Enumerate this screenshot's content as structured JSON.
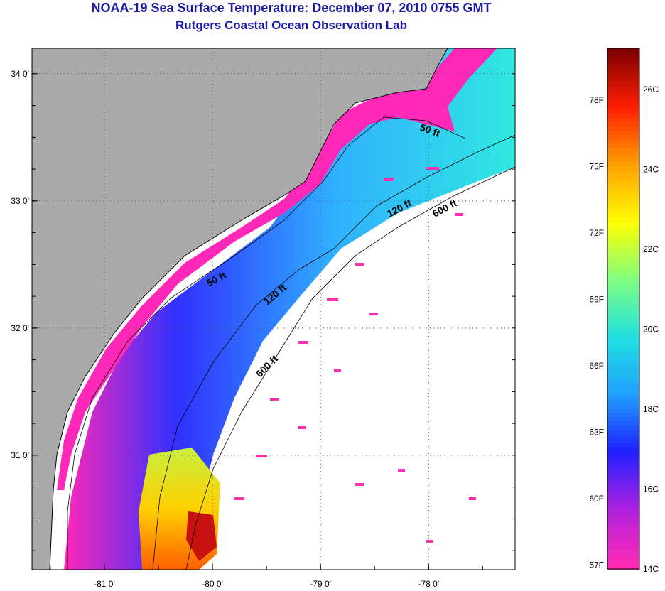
{
  "header": {
    "title": "NOAA-19 Sea Surface Temperature:  December 07, 2010 0755 GMT",
    "subtitle": "Rutgers Coastal Ocean Observation Lab"
  },
  "map": {
    "lon_range": [
      -81.67,
      -77.2
    ],
    "lat_range": [
      30.1,
      34.2
    ],
    "x_tick_labels": [
      "-81 0'",
      "-80 0'",
      "-79 0'",
      "-78 0'"
    ],
    "x_tick_values": [
      -81,
      -80,
      -79,
      -78
    ],
    "y_tick_labels": [
      "34 0'",
      "33 0'",
      "32 0'",
      "31 0'"
    ],
    "y_tick_values": [
      34,
      33,
      32,
      31
    ],
    "gridlines": "dotted",
    "land_color": "#aaaaaa",
    "contour_labels": [
      {
        "text": "50 ft",
        "id": "contour-50ft-north"
      },
      {
        "text": "120 ft",
        "id": "contour-120ft-north"
      },
      {
        "text": "600 ft",
        "id": "contour-600ft-north"
      },
      {
        "text": "50 ft",
        "id": "contour-50ft-south"
      },
      {
        "text": "120 ft",
        "id": "contour-120ft-south"
      },
      {
        "text": "600 ft",
        "id": "contour-600ft-south"
      }
    ]
  },
  "colorbar": {
    "fahrenheit_labels": [
      "78F",
      "75F",
      "72F",
      "69F",
      "66F",
      "63F",
      "60F",
      "57F"
    ],
    "celsius_labels": [
      "26C",
      "24C",
      "22C",
      "20C",
      "18C",
      "16C",
      "14C"
    ],
    "colors": [
      "#ff2ab4",
      "#b020e0",
      "#2020ff",
      "#20a0ff",
      "#20e0e0",
      "#80ff80",
      "#ffff00",
      "#ffa000",
      "#ff2000",
      "#800000"
    ]
  }
}
